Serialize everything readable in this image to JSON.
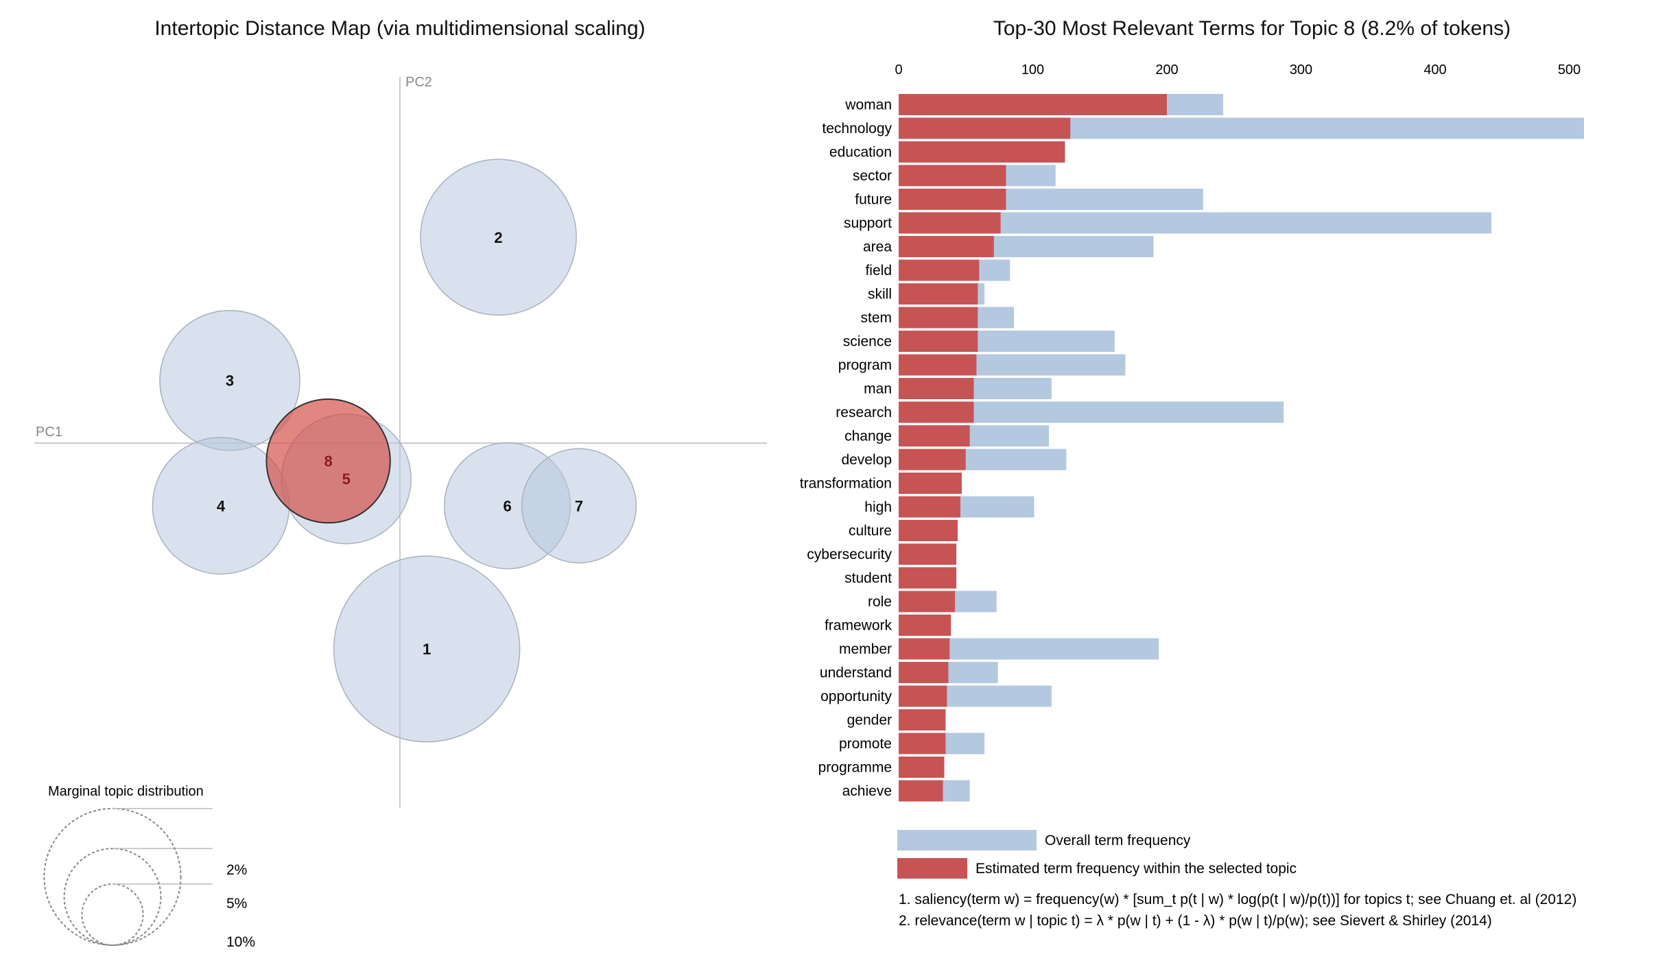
{
  "chart_data": [
    {
      "type": "scatter",
      "title": "Intertopic Distance Map (via multidimensional scaling)",
      "xlabel": "PC1",
      "ylabel": "PC2",
      "selected_topic": "8",
      "topics": [
        {
          "id": "1",
          "pc1": 0.03,
          "pc2": -0.23,
          "size_pct": 18.5
        },
        {
          "id": "2",
          "pc1": 0.11,
          "pc2": 0.23,
          "size_pct": 13.0
        },
        {
          "id": "3",
          "pc1": -0.19,
          "pc2": 0.07,
          "size_pct": 10.5
        },
        {
          "id": "4",
          "pc1": -0.2,
          "pc2": -0.07,
          "size_pct": 10.0
        },
        {
          "id": "5",
          "pc1": -0.06,
          "pc2": -0.04,
          "size_pct": 9.0
        },
        {
          "id": "6",
          "pc1": 0.12,
          "pc2": -0.07,
          "size_pct": 8.5
        },
        {
          "id": "7",
          "pc1": 0.2,
          "pc2": -0.07,
          "size_pct": 7.0
        },
        {
          "id": "8",
          "pc1": -0.08,
          "pc2": -0.02,
          "size_pct": 8.2
        }
      ],
      "legend": {
        "title": "Marginal topic distribution",
        "items": [
          {
            "label": "2%",
            "value": 2
          },
          {
            "label": "5%",
            "value": 5
          },
          {
            "label": "10%",
            "value": 10
          }
        ]
      }
    },
    {
      "type": "bar",
      "title": "Top-30 Most Relevant Terms for Topic 8 (8.2% of tokens)",
      "xlim": [
        0,
        520
      ],
      "x_ticks": [
        0,
        100,
        200,
        300,
        400,
        500
      ],
      "terms": [
        "woman",
        "technology",
        "education",
        "sector",
        "future",
        "support",
        "area",
        "field",
        "skill",
        "stem",
        "science",
        "program",
        "man",
        "research",
        "change",
        "develop",
        "transformation",
        "high",
        "culture",
        "cybersecurity",
        "student",
        "role",
        "framework",
        "member",
        "understand",
        "opportunity",
        "gender",
        "promote",
        "programme",
        "achieve"
      ],
      "series": [
        {
          "name": "Overall term frequency",
          "color": "#b4c8e0",
          "values": [
            242,
            511,
            124,
            117,
            227,
            442,
            190,
            83,
            64,
            86,
            161,
            169,
            114,
            287,
            112,
            125,
            47,
            101,
            44,
            43,
            43,
            73,
            39,
            194,
            74,
            114,
            35,
            64,
            34,
            53
          ]
        },
        {
          "name": "Estimated term frequency within the selected topic",
          "color": "#c75454",
          "values": [
            200,
            128,
            124,
            80,
            80,
            76,
            71,
            60,
            59,
            59,
            59,
            58,
            56,
            56,
            53,
            50,
            47,
            46,
            44,
            43,
            43,
            42,
            39,
            38,
            37,
            36,
            35,
            35,
            34,
            33
          ]
        }
      ],
      "legend_position": "bottom",
      "footnotes": [
        "1. saliency(term w) = frequency(w) * [sum_t p(t | w) * log(p(t | w)/p(t))] for topics t; see Chuang et. al (2012)",
        "2. relevance(term w | topic t) = λ * p(w | t) + (1 - λ) * p(w | t)/p(w); see Sievert & Shirley (2014)"
      ]
    }
  ]
}
